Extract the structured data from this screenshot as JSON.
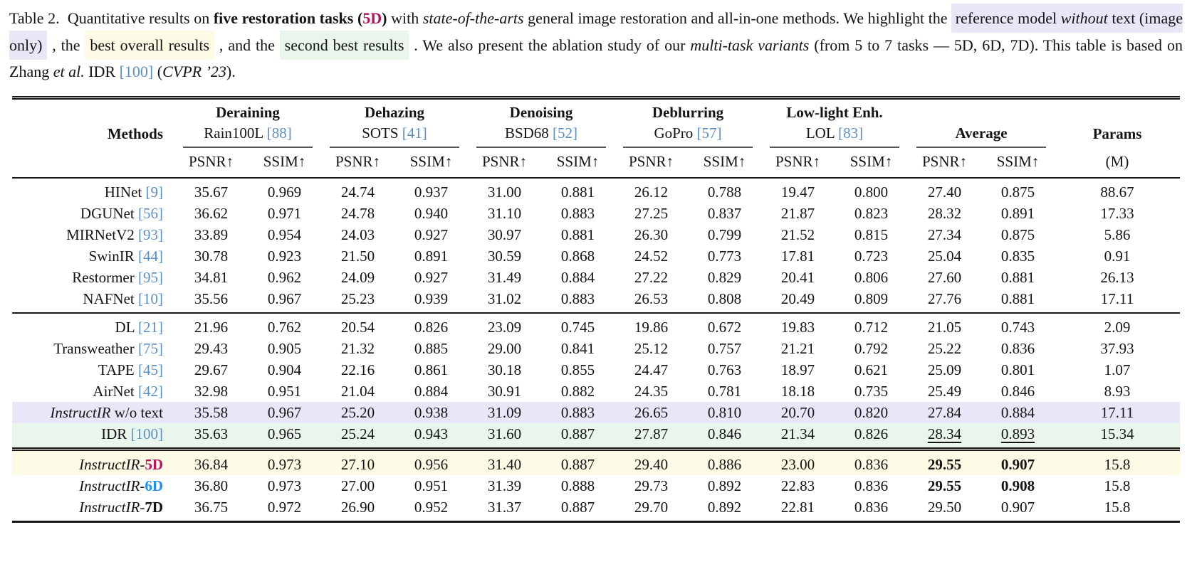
{
  "colors": {
    "ref_blue": "#5a8fc9",
    "crimson_5d": "#b8125e",
    "blue_6d": "#1e8ff2",
    "hl_lavender": "#e8e7f8",
    "hl_yellow": "#fdfbe5",
    "hl_green": "#eaf6ec",
    "rule_dark": "#161616",
    "rule_grey": "#555555"
  },
  "caption": {
    "segments": [
      {
        "t": "Table 2.  Quantitative results on ",
        "s": "plain"
      },
      {
        "t": "five restoration tasks (",
        "s": "bold"
      },
      {
        "t": "5D",
        "s": "boldcrimson"
      },
      {
        "t": ")",
        "s": "bold"
      },
      {
        "t": " with ",
        "s": "plain"
      },
      {
        "t": "state-of-the-arts",
        "s": "italic"
      },
      {
        "t": " general image restoration and all-in-one methods. We highlight the ",
        "s": "plain"
      },
      {
        "t": " reference model ",
        "s": "plain",
        "hl": "lavender"
      },
      {
        "t": "without",
        "s": "italic",
        "hl": "lavender"
      },
      {
        "t": " text (image only) ",
        "s": "plain",
        "hl": "lavender"
      },
      {
        "t": " , the ",
        "s": "plain"
      },
      {
        "t": " best overall results ",
        "s": "plain",
        "hl": "yellow"
      },
      {
        "t": " , and the ",
        "s": "plain"
      },
      {
        "t": " second best results ",
        "s": "plain",
        "hl": "green"
      },
      {
        "t": " . We also present the ablation study of our ",
        "s": "plain"
      },
      {
        "t": "multi-task variants",
        "s": "italic"
      },
      {
        "t": " (from 5 to 7 tasks — 5D, 6D, 7D). This table is based on Zhang ",
        "s": "plain"
      },
      {
        "t": "et al.",
        "s": "italic"
      },
      {
        "t": " IDR ",
        "s": "plain"
      },
      {
        "t": "[100]",
        "s": "ref"
      },
      {
        "t": " (",
        "s": "plain"
      },
      {
        "t": "CVPR ’23",
        "s": "italic"
      },
      {
        "t": ").",
        "s": "plain"
      }
    ]
  },
  "table": {
    "columns": {
      "method_header": "Methods",
      "groups": [
        {
          "task": "Deraining",
          "dataset": "Rain100L",
          "ref": "[88]"
        },
        {
          "task": "Dehazing",
          "dataset": "SOTS",
          "ref": "[41]"
        },
        {
          "task": "Denoising",
          "dataset": "BSD68",
          "ref": "[52]"
        },
        {
          "task": "Deblurring",
          "dataset": "GoPro",
          "ref": "[57]"
        },
        {
          "task": "Low-light Enh.",
          "dataset": "LOL",
          "ref": "[83]"
        }
      ],
      "average_header": "Average",
      "params_header": "Params",
      "params_unit": "(M)",
      "metric_psnr": "PSNR↑",
      "metric_ssim": "SSIM↑"
    },
    "groups": {
      "general": {
        "rows": [
          {
            "method": [
              {
                "t": "HINet ",
                "s": "plain"
              },
              {
                "t": "[9]",
                "s": "ref"
              }
            ],
            "values": [
              "35.67",
              "0.969",
              "24.74",
              "0.937",
              "31.00",
              "0.881",
              "26.12",
              "0.788",
              "19.47",
              "0.800",
              "27.40",
              "0.875",
              "88.67"
            ]
          },
          {
            "method": [
              {
                "t": "DGUNet ",
                "s": "plain"
              },
              {
                "t": "[56]",
                "s": "ref"
              }
            ],
            "values": [
              "36.62",
              "0.971",
              "24.78",
              "0.940",
              "31.10",
              "0.883",
              "27.25",
              "0.837",
              "21.87",
              "0.823",
              "28.32",
              "0.891",
              "17.33"
            ]
          },
          {
            "method": [
              {
                "t": "MIRNetV2 ",
                "s": "plain"
              },
              {
                "t": "[93]",
                "s": "ref"
              }
            ],
            "values": [
              "33.89",
              "0.954",
              "24.03",
              "0.927",
              "30.97",
              "0.881",
              "26.30",
              "0.799",
              "21.52",
              "0.815",
              "27.34",
              "0.875",
              "5.86"
            ]
          },
          {
            "method": [
              {
                "t": "SwinIR ",
                "s": "plain"
              },
              {
                "t": "[44]",
                "s": "ref"
              }
            ],
            "values": [
              "30.78",
              "0.923",
              "21.50",
              "0.891",
              "30.59",
              "0.868",
              "24.52",
              "0.773",
              "17.81",
              "0.723",
              "25.04",
              "0.835",
              "0.91"
            ]
          },
          {
            "method": [
              {
                "t": "Restormer ",
                "s": "plain"
              },
              {
                "t": "[95]",
                "s": "ref"
              }
            ],
            "values": [
              "34.81",
              "0.962",
              "24.09",
              "0.927",
              "31.49",
              "0.884",
              "27.22",
              "0.829",
              "20.41",
              "0.806",
              "27.60",
              "0.881",
              "26.13"
            ]
          },
          {
            "method": [
              {
                "t": "NAFNet ",
                "s": "plain"
              },
              {
                "t": "[10]",
                "s": "ref"
              }
            ],
            "values": [
              "35.56",
              "0.967",
              "25.23",
              "0.939",
              "31.02",
              "0.883",
              "26.53",
              "0.808",
              "20.49",
              "0.809",
              "27.76",
              "0.881",
              "17.11"
            ]
          }
        ]
      },
      "all_in_one": {
        "rows": [
          {
            "method": [
              {
                "t": "DL ",
                "s": "plain"
              },
              {
                "t": "[21]",
                "s": "ref"
              }
            ],
            "values": [
              "21.96",
              "0.762",
              "20.54",
              "0.826",
              "23.09",
              "0.745",
              "19.86",
              "0.672",
              "19.83",
              "0.712",
              "21.05",
              "0.743",
              "2.09"
            ]
          },
          {
            "method": [
              {
                "t": "Transweather ",
                "s": "plain"
              },
              {
                "t": "[75]",
                "s": "ref"
              }
            ],
            "values": [
              "29.43",
              "0.905",
              "21.32",
              "0.885",
              "29.00",
              "0.841",
              "25.12",
              "0.757",
              "21.21",
              "0.792",
              "25.22",
              "0.836",
              "37.93"
            ]
          },
          {
            "method": [
              {
                "t": "TAPE ",
                "s": "plain"
              },
              {
                "t": "[45]",
                "s": "ref"
              }
            ],
            "values": [
              "29.67",
              "0.904",
              "22.16",
              "0.861",
              "30.18",
              "0.855",
              "24.47",
              "0.763",
              "18.97",
              "0.621",
              "25.09",
              "0.801",
              "1.07"
            ]
          },
          {
            "method": [
              {
                "t": "AirNet ",
                "s": "plain"
              },
              {
                "t": "[42]",
                "s": "ref"
              }
            ],
            "values": [
              "32.98",
              "0.951",
              "21.04",
              "0.884",
              "30.91",
              "0.882",
              "24.35",
              "0.781",
              "18.18",
              "0.735",
              "25.49",
              "0.846",
              "8.93"
            ]
          },
          {
            "method": [
              {
                "t": "InstructIR",
                "s": "italic"
              },
              {
                "t": " w/o text",
                "s": "plain"
              }
            ],
            "hl": "lavender",
            "values": [
              "35.58",
              "0.967",
              "25.20",
              "0.938",
              "31.09",
              "0.883",
              "26.65",
              "0.810",
              "20.70",
              "0.820",
              "27.84",
              "0.884",
              "17.11"
            ]
          },
          {
            "method": [
              {
                "t": "IDR ",
                "s": "plain"
              },
              {
                "t": "[100]",
                "s": "ref"
              }
            ],
            "hl": "green",
            "underline": [
              10,
              11
            ],
            "values": [
              "35.63",
              "0.965",
              "25.24",
              "0.943",
              "31.60",
              "0.887",
              "27.87",
              "0.846",
              "21.34",
              "0.826",
              "28.34",
              "0.893",
              "15.34"
            ]
          }
        ]
      },
      "ours": {
        "rows": [
          {
            "method": [
              {
                "t": "InstructIR",
                "s": "italic"
              },
              {
                "t": "-",
                "s": "plain"
              },
              {
                "t": "5D",
                "s": "bold5d"
              }
            ],
            "hl": "yellow",
            "bold": [
              10,
              11
            ],
            "values": [
              "36.84",
              "0.973",
              "27.10",
              "0.956",
              "31.40",
              "0.887",
              "29.40",
              "0.886",
              "23.00",
              "0.836",
              "29.55",
              "0.907",
              "15.8"
            ]
          },
          {
            "method": [
              {
                "t": "InstructIR",
                "s": "italic"
              },
              {
                "t": "-",
                "s": "plain"
              },
              {
                "t": "6D",
                "s": "bold6d"
              }
            ],
            "bold": [
              10,
              11
            ],
            "values": [
              "36.80",
              "0.973",
              "27.00",
              "0.951",
              "31.39",
              "0.888",
              "29.73",
              "0.892",
              "22.83",
              "0.836",
              "29.55",
              "0.908",
              "15.8"
            ]
          },
          {
            "method": [
              {
                "t": "InstructIR",
                "s": "italic"
              },
              {
                "t": "-",
                "s": "plain"
              },
              {
                "t": "7D",
                "s": "bold7d"
              }
            ],
            "values": [
              "36.75",
              "0.972",
              "26.90",
              "0.952",
              "31.37",
              "0.887",
              "29.70",
              "0.892",
              "22.81",
              "0.836",
              "29.50",
              "0.907",
              "15.8"
            ]
          }
        ]
      }
    }
  }
}
